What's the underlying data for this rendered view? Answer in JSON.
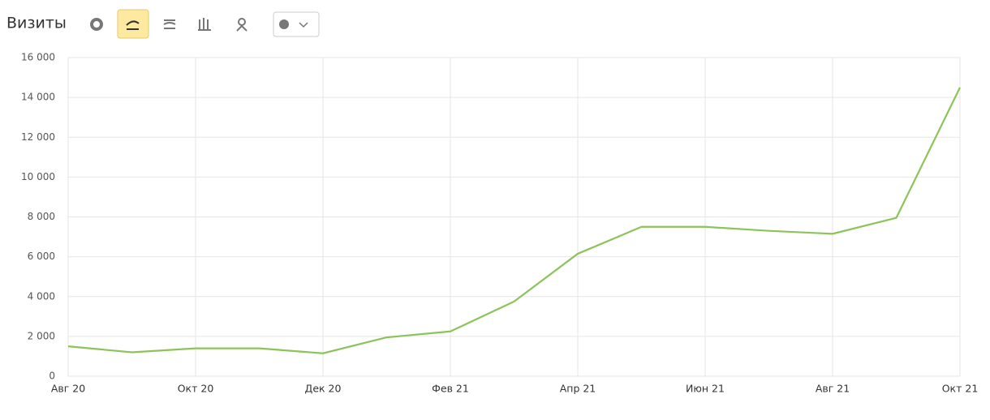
{
  "title": "Визиты",
  "chart_data": {
    "type": "line",
    "categories": [
      "Авг 20",
      null,
      "Окт 20",
      null,
      "Дек 20",
      null,
      "Фев 21",
      null,
      "Апр 21",
      null,
      "Июн 21",
      null,
      "Авг 21",
      null,
      "Окт 21"
    ],
    "series": [
      {
        "name": "Визиты",
        "color": "#8cc45a",
        "values": [
          1500,
          1200,
          1400,
          1400,
          1150,
          1950,
          2250,
          3750,
          6150,
          7500,
          7500,
          7300,
          7150,
          7950,
          14500
        ]
      }
    ],
    "ylim": [
      0,
      16000
    ],
    "yticks": [
      0,
      {
        "value": 2000,
        "label": "2 000"
      },
      {
        "value": 4000,
        "label": "4 000"
      },
      {
        "value": 6000,
        "label": "6 000"
      },
      {
        "value": 8000,
        "label": "8 000"
      },
      {
        "value": 10000,
        "label": "10 000"
      },
      {
        "value": 12000,
        "label": "12 000"
      },
      {
        "value": 14000,
        "label": "14 000"
      },
      {
        "value": 16000,
        "label": "16 000"
      }
    ],
    "grid": true
  }
}
